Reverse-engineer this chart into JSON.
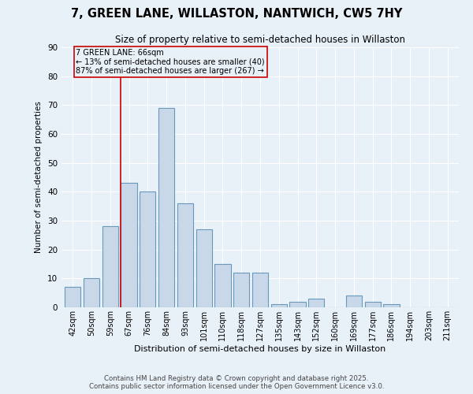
{
  "title": "7, GREEN LANE, WILLASTON, NANTWICH, CW5 7HY",
  "subtitle": "Size of property relative to semi-detached houses in Willaston",
  "xlabel": "Distribution of semi-detached houses by size in Willaston",
  "ylabel": "Number of semi-detached properties",
  "bar_labels": [
    "42sqm",
    "50sqm",
    "59sqm",
    "67sqm",
    "76sqm",
    "84sqm",
    "93sqm",
    "101sqm",
    "110sqm",
    "118sqm",
    "127sqm",
    "135sqm",
    "143sqm",
    "152sqm",
    "160sqm",
    "169sqm",
    "177sqm",
    "186sqm",
    "194sqm",
    "203sqm",
    "211sqm"
  ],
  "bar_values": [
    7,
    10,
    28,
    43,
    40,
    69,
    36,
    27,
    15,
    12,
    12,
    1,
    2,
    3,
    0,
    4,
    2,
    1,
    0,
    0,
    0
  ],
  "bar_color": "#c8d8e8",
  "bar_edge_color": "#6699bb",
  "property_label": "7 GREEN LANE: 66sqm",
  "annotation_line1": "← 13% of semi-detached houses are smaller (40)",
  "annotation_line2": "87% of semi-detached houses are larger (267) →",
  "vline_color": "#cc0000",
  "annotation_box_color": "#cc0000",
  "footer1": "Contains HM Land Registry data © Crown copyright and database right 2025.",
  "footer2": "Contains public sector information licensed under the Open Government Licence v3.0.",
  "ylim": [
    0,
    90
  ],
  "yticks": [
    0,
    10,
    20,
    30,
    40,
    50,
    60,
    70,
    80,
    90
  ],
  "background_color": "#e8f0f8",
  "grid_color": "#ffffff"
}
